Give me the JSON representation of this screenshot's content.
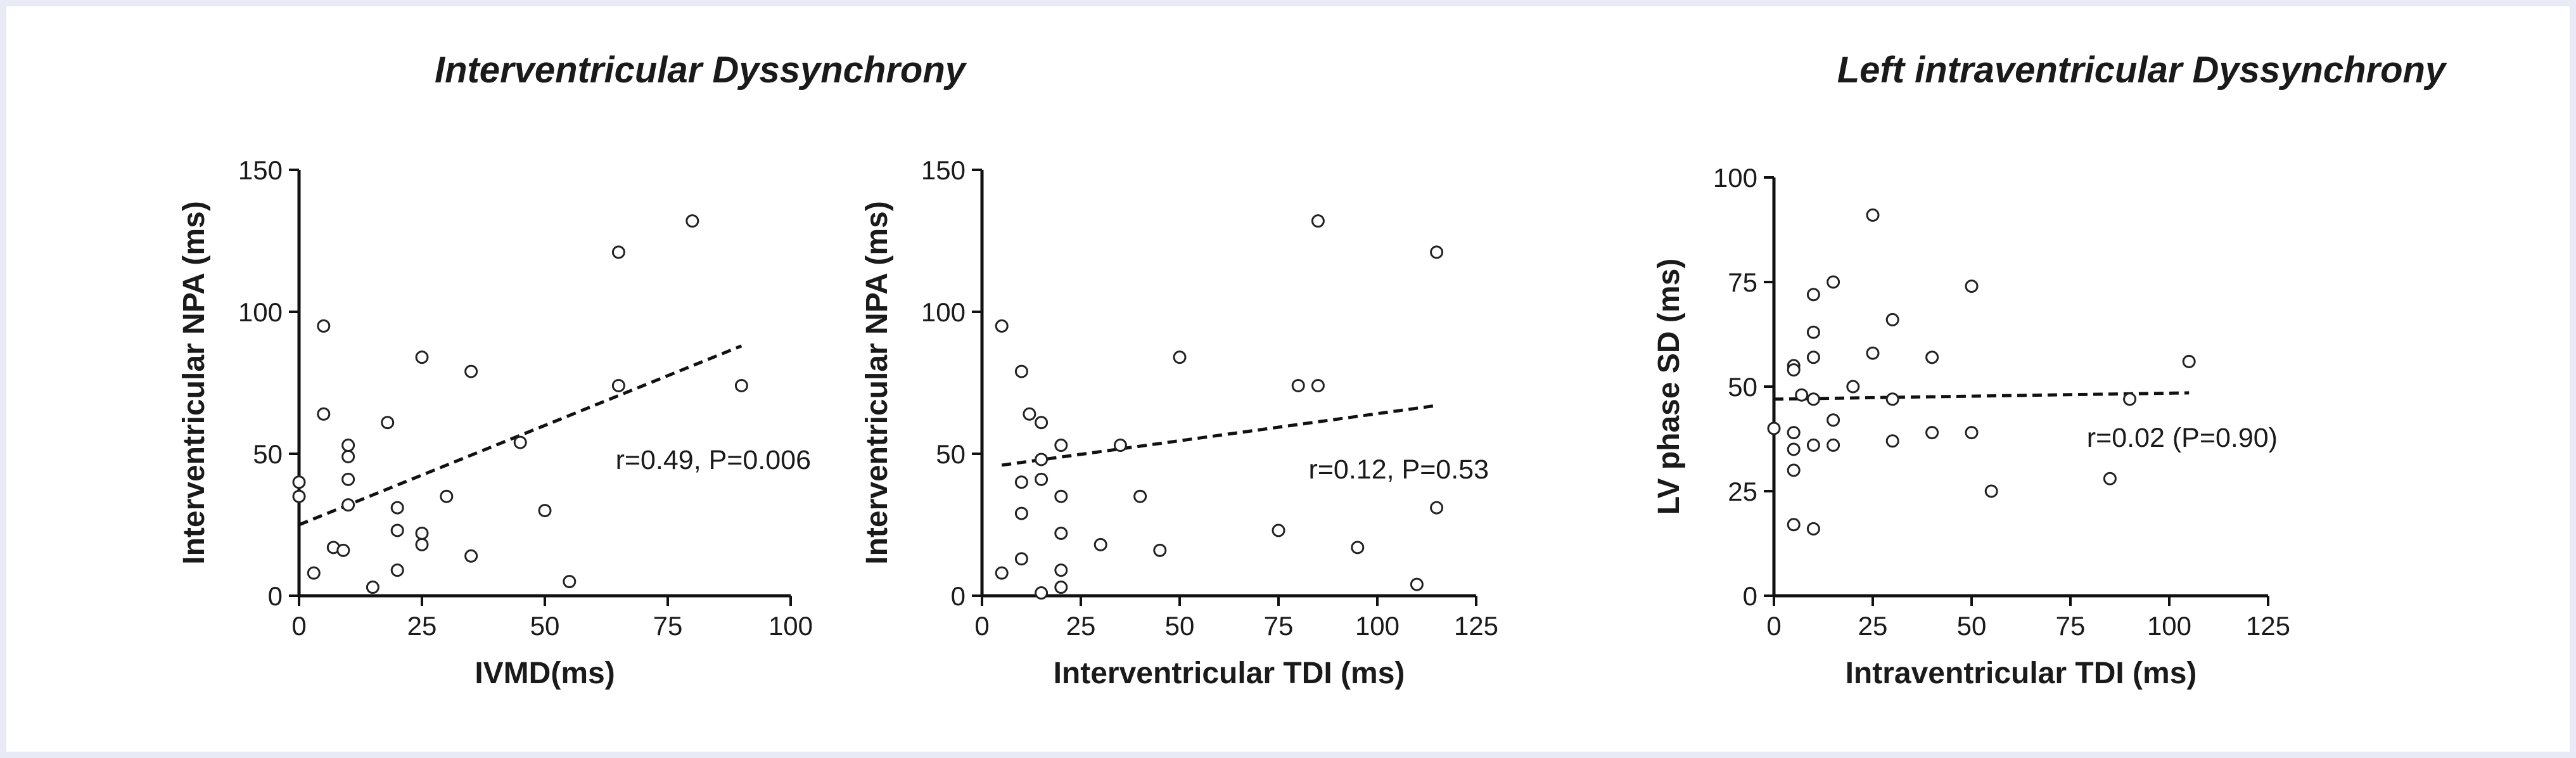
{
  "figure": {
    "group_titles": [
      "Interventricular Dyssynchrony",
      "Left intraventricular Dyssynchrony"
    ]
  },
  "chart_data": [
    {
      "type": "scatter",
      "group": "Interventricular Dyssynchrony",
      "xlabel": "IVMD(ms)",
      "ylabel": "Interventricular NPA (ms)",
      "xlim": [
        0,
        100
      ],
      "ylim": [
        0,
        150
      ],
      "xticks": [
        0,
        25,
        50,
        75,
        100
      ],
      "yticks": [
        0,
        50,
        100,
        150
      ],
      "points": [
        [
          0,
          40
        ],
        [
          0,
          35
        ],
        [
          3,
          8
        ],
        [
          5,
          95
        ],
        [
          5,
          64
        ],
        [
          7,
          17
        ],
        [
          9,
          16
        ],
        [
          10,
          53
        ],
        [
          10,
          49
        ],
        [
          10,
          41
        ],
        [
          10,
          32
        ],
        [
          15,
          3
        ],
        [
          18,
          61
        ],
        [
          20,
          31
        ],
        [
          20,
          23
        ],
        [
          20,
          9
        ],
        [
          25,
          84
        ],
        [
          25,
          22
        ],
        [
          25,
          18
        ],
        [
          30,
          35
        ],
        [
          35,
          79
        ],
        [
          35,
          14
        ],
        [
          45,
          54
        ],
        [
          50,
          30
        ],
        [
          55,
          5
        ],
        [
          65,
          121
        ],
        [
          65,
          74
        ],
        [
          80,
          132
        ],
        [
          90,
          74
        ]
      ],
      "fit_line": {
        "x": [
          0,
          90
        ],
        "y": [
          25,
          88
        ]
      },
      "annotation": "r=0.49, P=0.006"
    },
    {
      "type": "scatter",
      "group": "Interventricular Dyssynchrony",
      "xlabel": "Interventricular TDI (ms)",
      "ylabel": "Interventricular NPA (ms)",
      "xlim": [
        0,
        125
      ],
      "ylim": [
        0,
        150
      ],
      "xticks": [
        0,
        25,
        50,
        75,
        100,
        125
      ],
      "yticks": [
        0,
        50,
        100,
        150
      ],
      "points": [
        [
          5,
          95
        ],
        [
          5,
          8
        ],
        [
          10,
          79
        ],
        [
          10,
          40
        ],
        [
          10,
          13
        ],
        [
          10,
          29
        ],
        [
          12,
          64
        ],
        [
          15,
          61
        ],
        [
          15,
          48
        ],
        [
          15,
          41
        ],
        [
          15,
          1
        ],
        [
          20,
          53
        ],
        [
          20,
          35
        ],
        [
          20,
          22
        ],
        [
          20,
          9
        ],
        [
          20,
          3
        ],
        [
          30,
          18
        ],
        [
          35,
          53
        ],
        [
          40,
          35
        ],
        [
          45,
          16
        ],
        [
          50,
          84
        ],
        [
          75,
          23
        ],
        [
          80,
          74
        ],
        [
          85,
          74
        ],
        [
          85,
          132
        ],
        [
          95,
          17
        ],
        [
          110,
          4
        ],
        [
          115,
          121
        ],
        [
          115,
          31
        ]
      ],
      "fit_line": {
        "x": [
          5,
          115
        ],
        "y": [
          46,
          67
        ]
      },
      "annotation": "r=0.12, P=0.53"
    },
    {
      "type": "scatter",
      "group": "Left intraventricular Dyssynchrony",
      "xlabel": "Intraventricular TDI (ms)",
      "ylabel": "LV phase SD (ms)",
      "xlim": [
        0,
        125
      ],
      "ylim": [
        0,
        100
      ],
      "xticks": [
        0,
        25,
        50,
        75,
        100,
        125
      ],
      "yticks": [
        0,
        25,
        50,
        75,
        100
      ],
      "points": [
        [
          0,
          40
        ],
        [
          5,
          55
        ],
        [
          5,
          54
        ],
        [
          5,
          39
        ],
        [
          5,
          35
        ],
        [
          5,
          30
        ],
        [
          5,
          17
        ],
        [
          7,
          48
        ],
        [
          10,
          72
        ],
        [
          10,
          63
        ],
        [
          10,
          57
        ],
        [
          10,
          47
        ],
        [
          10,
          36
        ],
        [
          10,
          16
        ],
        [
          15,
          75
        ],
        [
          15,
          42
        ],
        [
          15,
          36
        ],
        [
          20,
          50
        ],
        [
          25,
          91
        ],
        [
          25,
          58
        ],
        [
          30,
          66
        ],
        [
          30,
          47
        ],
        [
          30,
          37
        ],
        [
          40,
          57
        ],
        [
          40,
          39
        ],
        [
          50,
          74
        ],
        [
          50,
          39
        ],
        [
          55,
          25
        ],
        [
          85,
          28
        ],
        [
          90,
          47
        ],
        [
          105,
          56
        ]
      ],
      "fit_line": {
        "x": [
          0,
          105
        ],
        "y": [
          47,
          48.5
        ]
      },
      "annotation": "r=0.02 (P=0.90)"
    }
  ]
}
